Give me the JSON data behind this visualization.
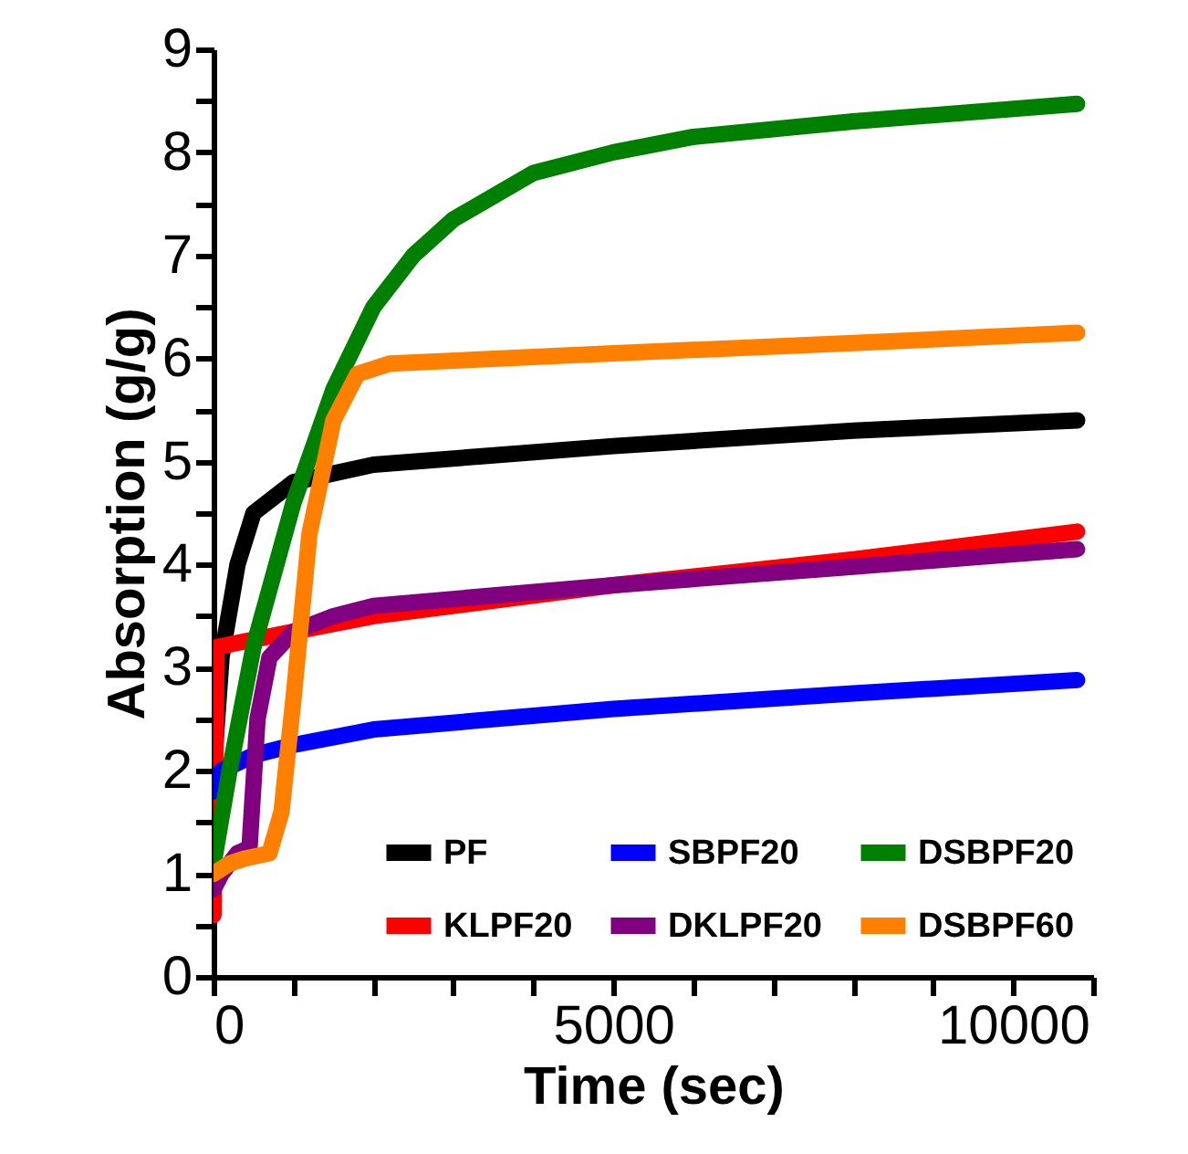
{
  "chart_data": {
    "type": "line",
    "xlabel": "Time (sec)",
    "ylabel": "Absorption (g/g)",
    "xlim": [
      0,
      11000
    ],
    "ylim": [
      0,
      9
    ],
    "xticks": [
      0,
      {
        "value": 1000,
        "label": null
      },
      {
        "value": 2000,
        "label": null
      },
      {
        "value": 3000,
        "label": null
      },
      {
        "value": 4000,
        "label": null
      },
      5000,
      {
        "value": 6000,
        "label": null
      },
      {
        "value": 7000,
        "label": null
      },
      {
        "value": 8000,
        "label": null
      },
      {
        "value": 9000,
        "label": null
      },
      10000,
      {
        "value": 11000,
        "label": null
      }
    ],
    "yticks": [
      0,
      {
        "value": 0.5,
        "label": null
      },
      1,
      {
        "value": 1.5,
        "label": null
      },
      2,
      {
        "value": 2.5,
        "label": null
      },
      3,
      {
        "value": 3.5,
        "label": null
      },
      4,
      {
        "value": 4.5,
        "label": null
      },
      5,
      {
        "value": 5.5,
        "label": null
      },
      6,
      {
        "value": 6.5,
        "label": null
      },
      7,
      {
        "value": 7.5,
        "label": null
      },
      8,
      {
        "value": 8.5,
        "label": null
      },
      9
    ],
    "grid": false,
    "legend": "bottom",
    "marker": "none",
    "line_style": "solid",
    "series": [
      {
        "name": "PF",
        "color": "#000000",
        "x": [
          0,
          100,
          300,
          500,
          1000,
          2000,
          5000,
          8000,
          10800
        ],
        "values": [
          2.0,
          3.1,
          4.0,
          4.5,
          4.8,
          4.97,
          5.15,
          5.3,
          5.4
        ]
      },
      {
        "name": "KLPF20",
        "color": "#ff0000",
        "x": [
          0,
          20,
          40,
          1000,
          2000,
          5000,
          8000,
          10800
        ],
        "values": [
          0.6,
          2.0,
          3.2,
          3.35,
          3.5,
          3.8,
          4.05,
          4.32
        ]
      },
      {
        "name": "SBPF20",
        "color": "#0000ff",
        "x": [
          0,
          100,
          500,
          1000,
          2000,
          5000,
          8000,
          10800
        ],
        "values": [
          1.8,
          2.0,
          2.15,
          2.25,
          2.4,
          2.6,
          2.75,
          2.88
        ]
      },
      {
        "name": "DKLPF20",
        "color": "#800080",
        "x": [
          0,
          100,
          300,
          450,
          550,
          700,
          1000,
          1500,
          2000,
          5000,
          8000,
          10800
        ],
        "values": [
          0.85,
          1.0,
          1.2,
          1.25,
          2.5,
          3.1,
          3.35,
          3.5,
          3.6,
          3.8,
          3.98,
          4.15
        ]
      },
      {
        "name": "DSBPF20",
        "color": "#008000",
        "x": [
          0,
          200,
          500,
          1000,
          1500,
          2000,
          2500,
          3000,
          4000,
          5000,
          6000,
          8000,
          10800
        ],
        "values": [
          1.1,
          2.0,
          3.2,
          4.6,
          5.7,
          6.5,
          7.0,
          7.35,
          7.8,
          8.0,
          8.15,
          8.3,
          8.47
        ]
      },
      {
        "name": "DSBPF60",
        "color": "#ff8000",
        "x": [
          0,
          200,
          400,
          700,
          850,
          1000,
          1200,
          1500,
          1800,
          2200,
          5000,
          8000,
          10800
        ],
        "values": [
          1.0,
          1.1,
          1.15,
          1.2,
          1.6,
          2.7,
          4.3,
          5.4,
          5.85,
          5.95,
          6.05,
          6.15,
          6.25
        ]
      }
    ]
  }
}
